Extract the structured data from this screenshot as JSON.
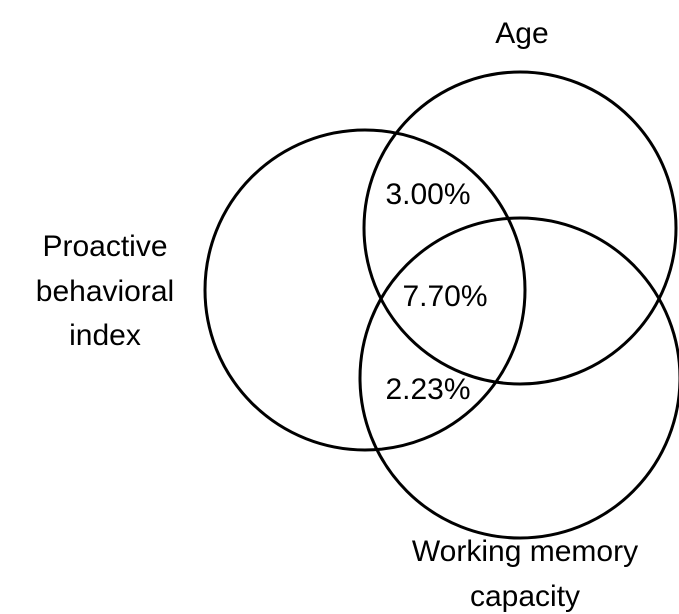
{
  "sets": [
    {
      "label": [
        "Proactive",
        "behavioral",
        "index"
      ]
    },
    {
      "label": [
        "Age"
      ]
    },
    {
      "label": [
        "Working memory",
        "capacity"
      ]
    }
  ],
  "regions": [
    {
      "label": "3.00%"
    },
    {
      "label": "7.70%"
    },
    {
      "label": "2.23%"
    }
  ]
}
